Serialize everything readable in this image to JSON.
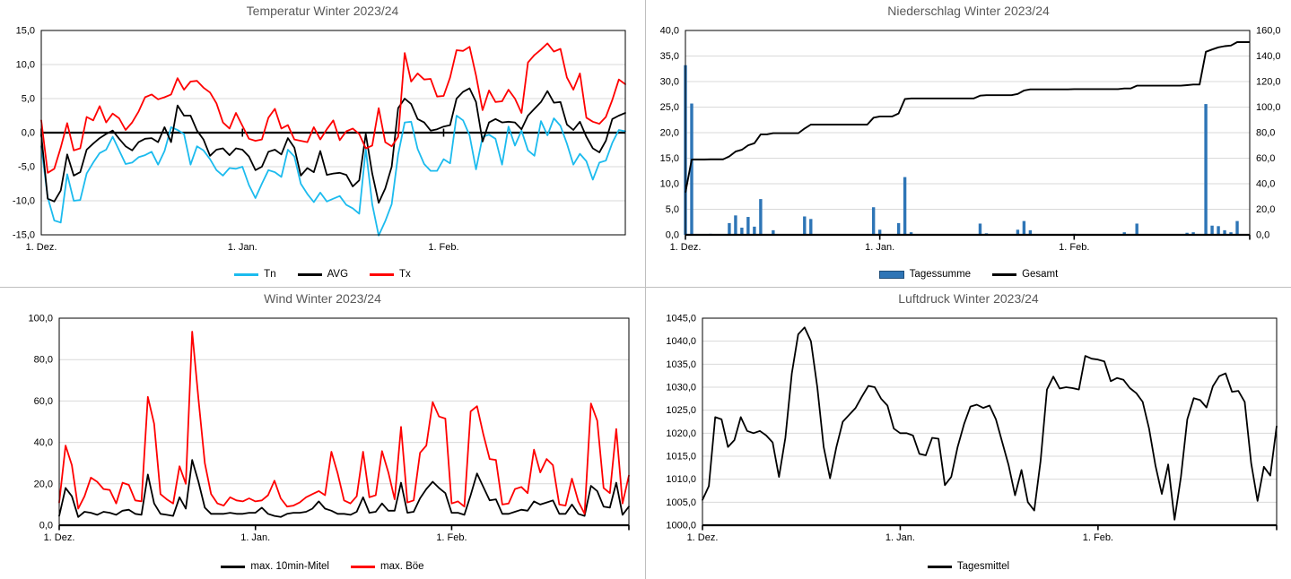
{
  "app": {
    "divider_color": "#bfbfbf",
    "title_color": "#595959",
    "grid_color": "#d9d9d9"
  },
  "chart_data": [
    {
      "id": "temperature",
      "type": "line",
      "title": "Temperatur Winter 2023/24",
      "ylim": [
        -15,
        15
      ],
      "ystep": 5,
      "zero_axis": true,
      "grid": true,
      "legend_position": "bottom",
      "x_axis": {
        "n_days": 91,
        "tick_days": [
          0,
          31,
          62
        ],
        "tick_labels": [
          "1. Dez.",
          "1. Jan.",
          "1. Feb."
        ]
      },
      "series": [
        {
          "name": "Tn",
          "color": "#1CBBEE",
          "values": [
            -2.0,
            -9.5,
            -12.9,
            -13.2,
            -6.1,
            -10.0,
            -9.9,
            -6.0,
            -4.4,
            -3.0,
            -2.5,
            -0.6,
            -2.6,
            -4.6,
            -4.4,
            -3.6,
            -3.3,
            -2.8,
            -4.7,
            -2.7,
            0.8,
            0.4,
            -0.2,
            -4.7,
            -2.0,
            -2.6,
            -3.9,
            -5.5,
            -6.3,
            -5.2,
            -5.3,
            -5.0,
            -7.7,
            -9.6,
            -7.5,
            -5.5,
            -5.8,
            -6.5,
            -2.5,
            -3.5,
            -7.5,
            -9.0,
            -10.2,
            -8.8,
            -10.1,
            -9.7,
            -9.3,
            -10.6,
            -11.1,
            -11.9,
            -2.4,
            -10.5,
            -15.1,
            -13.0,
            -10.5,
            -3.2,
            1.5,
            1.6,
            -2.4,
            -4.6,
            -5.6,
            -5.6,
            -3.9,
            -4.5,
            2.5,
            1.8,
            -0.4,
            -5.4,
            -0.6,
            -0.3,
            -0.9,
            -4.7,
            0.9,
            -1.9,
            0.3,
            -2.6,
            -3.4,
            1.7,
            -0.4,
            2.1,
            1.0,
            -1.6,
            -4.7,
            -3.1,
            -4.2,
            -6.9,
            -4.4,
            -4.1,
            -1.5,
            0.4,
            0.2
          ]
        },
        {
          "name": "AVG",
          "color": "#000000",
          "values": [
            -0.3,
            -9.7,
            -10.1,
            -8.5,
            -3.2,
            -6.3,
            -5.8,
            -2.5,
            -1.6,
            -0.8,
            -0.2,
            0.3,
            -0.9,
            -2.0,
            -2.6,
            -1.4,
            -0.9,
            -0.8,
            -1.4,
            0.8,
            -1.4,
            4.0,
            2.5,
            2.5,
            0.3,
            -1.0,
            -3.4,
            -2.5,
            -2.3,
            -3.3,
            -2.3,
            -2.5,
            -3.5,
            -5.5,
            -5.0,
            -2.8,
            -2.5,
            -3.2,
            -0.8,
            -2.2,
            -6.3,
            -5.2,
            -5.8,
            -2.7,
            -6.2,
            -6.0,
            -5.9,
            -6.2,
            -7.9,
            -7.0,
            -0.2,
            -6.0,
            -10.3,
            -8.2,
            -5.0,
            3.6,
            5.0,
            4.2,
            2.0,
            1.5,
            0.3,
            0.5,
            0.9,
            1.1,
            5.0,
            6.0,
            6.5,
            4.5,
            -1.3,
            1.5,
            2.0,
            1.5,
            1.6,
            1.5,
            0.5,
            2.5,
            3.5,
            4.5,
            6.1,
            4.4,
            4.5,
            1.2,
            0.4,
            1.6,
            -0.6,
            -2.3,
            -2.9,
            -1.2,
            2.0,
            2.5,
            2.9
          ]
        },
        {
          "name": "Tx",
          "color": "#FF0000",
          "values": [
            1.8,
            -5.9,
            -5.3,
            -2.2,
            1.4,
            -2.6,
            -2.3,
            2.3,
            1.8,
            3.9,
            1.5,
            2.8,
            2.1,
            0.4,
            1.5,
            3.1,
            5.2,
            5.6,
            4.9,
            5.2,
            5.6,
            8.0,
            6.3,
            7.5,
            7.6,
            6.6,
            5.9,
            4.3,
            1.5,
            0.6,
            2.9,
            1.0,
            -0.9,
            -1.2,
            -1.0,
            2.2,
            3.5,
            0.6,
            1.1,
            -1.0,
            -1.2,
            -1.4,
            0.8,
            -1.0,
            0.5,
            1.8,
            -1.1,
            0.2,
            0.6,
            -0.2,
            -2.3,
            -1.9,
            3.6,
            -1.4,
            -2.0,
            -0.6,
            11.7,
            7.5,
            8.7,
            7.8,
            7.9,
            5.3,
            5.4,
            8.1,
            12.1,
            12.0,
            12.6,
            8.4,
            3.3,
            6.2,
            4.5,
            4.6,
            6.3,
            5.0,
            2.9,
            10.3,
            11.4,
            12.2,
            13.1,
            11.9,
            12.3,
            8.1,
            6.3,
            8.7,
            2.2,
            1.6,
            1.3,
            2.3,
            4.8,
            7.8,
            7.1
          ]
        }
      ]
    },
    {
      "id": "precipitation",
      "type": "bar",
      "title": "Niederschlag Winter 2023/24",
      "ylim": [
        0,
        40
      ],
      "ystep": 5,
      "y2lim": [
        0,
        160
      ],
      "y2step": 20,
      "y_label_color": "#2E75B6",
      "zero_axis": false,
      "grid": true,
      "legend_position": "bottom",
      "x_axis": {
        "n_days": 91,
        "tick_days": [
          0,
          31,
          62
        ],
        "tick_labels": [
          "1. Dez.",
          "1. Jan.",
          "1. Feb."
        ]
      },
      "bar_series": {
        "name": "Tagessumme",
        "color": "#2E75B6",
        "border_color": "#1F4E79",
        "values": [
          33.2,
          25.7,
          0,
          0,
          0.2,
          0,
          0,
          2.3,
          3.8,
          1.4,
          3.5,
          1.6,
          7.0,
          0,
          0.9,
          0,
          0,
          0,
          0,
          3.6,
          3.1,
          0,
          0,
          0,
          0,
          0,
          0,
          0,
          0,
          0,
          5.4,
          1.0,
          0,
          0,
          2.3,
          11.3,
          0.5,
          0,
          0,
          0,
          0,
          0,
          0,
          0,
          0,
          0,
          0,
          2.2,
          0.3,
          0,
          0,
          0,
          0,
          1.0,
          2.7,
          0.9,
          0,
          0,
          0,
          0,
          0,
          0,
          0.2,
          0,
          0,
          0,
          0,
          0,
          0,
          0,
          0.5,
          0,
          2.2,
          0,
          0,
          0,
          0,
          0,
          0,
          0,
          0.4,
          0.5,
          0,
          25.6,
          1.8,
          1.7,
          0.9,
          0.5,
          2.7,
          0,
          0
        ]
      },
      "line_series": {
        "name": "Gesamt",
        "color": "#000000",
        "cumulative_of_bars": true
      }
    },
    {
      "id": "wind",
      "type": "line",
      "title": "Wind Winter 2023/24",
      "ylim": [
        0,
        100
      ],
      "ystep": 20,
      "zero_axis": false,
      "grid": true,
      "legend_position": "bottom",
      "x_axis": {
        "n_days": 91,
        "tick_days": [
          0,
          31,
          62
        ],
        "tick_labels": [
          "1. Dez.",
          "1. Jan.",
          "1. Feb."
        ]
      },
      "series": [
        {
          "name": "max. 10min-Mitel",
          "color": "#000000",
          "values": [
            4.5,
            18,
            14,
            4,
            6.5,
            6,
            5,
            6.5,
            6,
            5,
            7,
            7.5,
            5.5,
            5,
            24.5,
            10.5,
            5.5,
            5,
            4.5,
            13.5,
            8,
            31.5,
            21,
            8.5,
            5.5,
            5.5,
            5.5,
            6,
            5.5,
            5.5,
            6,
            6,
            8.5,
            5.5,
            4.5,
            4,
            5.5,
            6,
            6,
            6.5,
            8,
            11.5,
            8,
            7,
            5.5,
            5.5,
            5,
            6.5,
            13.5,
            6,
            6.5,
            10.5,
            7,
            7,
            20.5,
            6,
            6.5,
            13,
            17.5,
            21,
            18,
            15.5,
            6,
            6,
            5,
            14.5,
            25,
            18.5,
            12,
            12.5,
            5.5,
            5.5,
            6.5,
            7.5,
            7,
            11.5,
            10,
            11,
            12,
            5.5,
            5.5,
            10,
            5.5,
            4.5,
            19,
            16.5,
            9,
            8.5,
            20.5,
            5,
            9
          ]
        },
        {
          "name": "max. Böe",
          "color": "#FF0000",
          "values": [
            11,
            38.5,
            29,
            8,
            14,
            23,
            21,
            17.5,
            17,
            10.5,
            20.5,
            19.5,
            12,
            11.5,
            62,
            49,
            15,
            12.5,
            10.5,
            28.5,
            20,
            93.5,
            61,
            30,
            15,
            10.5,
            9.5,
            13.5,
            12,
            11.5,
            13,
            11.5,
            12,
            14.5,
            21.5,
            13,
            9,
            9.5,
            11,
            13.5,
            15,
            16.5,
            14.5,
            35.5,
            25,
            12,
            10.5,
            14,
            35.5,
            13.5,
            14.5,
            35.8,
            25.5,
            12.5,
            47.5,
            11,
            12,
            35,
            38.5,
            59.5,
            52.5,
            51.5,
            10.5,
            11.5,
            9,
            55,
            57.5,
            44,
            32,
            31.5,
            10,
            10.5,
            17.5,
            18.5,
            15.5,
            36.5,
            25.5,
            32,
            29,
            10,
            9.5,
            22.5,
            11.5,
            5.5,
            58.8,
            50.5,
            18,
            15.5,
            46.5,
            10.5,
            24
          ]
        }
      ]
    },
    {
      "id": "pressure",
      "type": "line",
      "title": "Luftdruck Winter 2023/24",
      "ylim": [
        1000,
        1045
      ],
      "ystep": 5,
      "zero_axis": false,
      "grid": true,
      "legend_position": "bottom",
      "x_axis": {
        "n_days": 91,
        "tick_days": [
          0,
          31,
          62
        ],
        "tick_labels": [
          "1. Dez.",
          "1. Jan.",
          "1. Feb."
        ]
      },
      "series": [
        {
          "name": "Tagesmittel",
          "color": "#000000",
          "values": [
            1005.5,
            1008.5,
            1023.5,
            1023.0,
            1017.0,
            1018.5,
            1023.5,
            1020.5,
            1020.0,
            1020.5,
            1019.5,
            1018.0,
            1010.5,
            1019.0,
            1033.0,
            1041.5,
            1043.0,
            1040.0,
            1030.0,
            1017.0,
            1010.2,
            1017.0,
            1022.5,
            1024.0,
            1025.5,
            1028.0,
            1030.3,
            1030.0,
            1027.5,
            1026.0,
            1021.0,
            1020.0,
            1020.0,
            1019.5,
            1015.5,
            1015.2,
            1019.0,
            1018.8,
            1008.7,
            1010.5,
            1017.0,
            1022.0,
            1025.8,
            1026.2,
            1025.5,
            1026.0,
            1023.0,
            1018.0,
            1013.0,
            1006.5,
            1012.0,
            1005.0,
            1003.2,
            1014.0,
            1029.5,
            1032.3,
            1029.7,
            1030.0,
            1029.8,
            1029.5,
            1036.8,
            1036.2,
            1036.0,
            1035.6,
            1031.3,
            1032.0,
            1031.6,
            1029.8,
            1028.7,
            1026.8,
            1021.0,
            1013.0,
            1006.8,
            1013.2,
            1001.2,
            1010.5,
            1023.0,
            1027.6,
            1027.2,
            1025.6,
            1030.2,
            1032.4,
            1033.0,
            1029.0,
            1029.2,
            1026.8,
            1013.5,
            1005.3,
            1012.7,
            1010.8,
            1021.5
          ]
        }
      ]
    }
  ]
}
